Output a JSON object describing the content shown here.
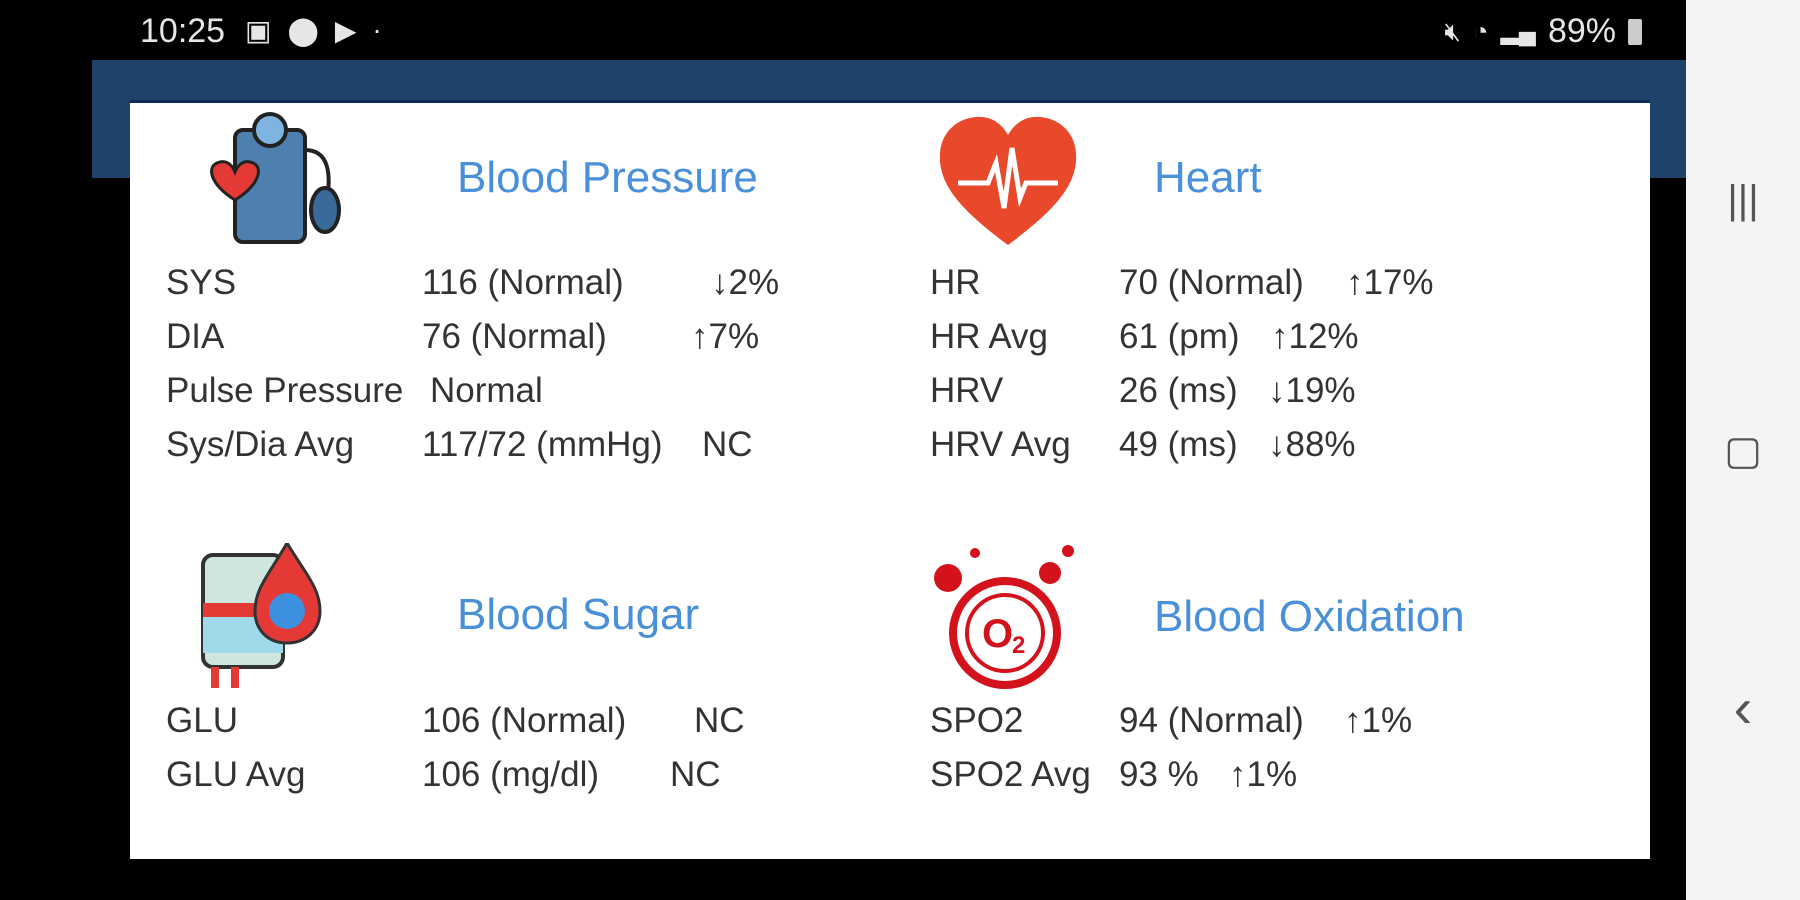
{
  "status_bar": {
    "time": "10:25",
    "battery": "89%",
    "icons": [
      "image-icon",
      "location-icon",
      "play-store-icon",
      "dot-icon",
      "mute-icon",
      "wifi-icon",
      "signal-icon",
      "battery-icon"
    ]
  },
  "nav": {
    "recents": "|||",
    "home": "▢",
    "back": "‹"
  },
  "sections": {
    "bp": {
      "title": "Blood Pressure",
      "rows": [
        {
          "label": "SYS",
          "value": "116 (Normal)",
          "change": "↓2%"
        },
        {
          "label": "DIA",
          "value": "76 (Normal)",
          "change": "↑7%"
        },
        {
          "label": "Pulse Pressure",
          "value": "Normal",
          "change": ""
        },
        {
          "label": "Sys/Dia Avg",
          "value": "117/72 (mmHg)",
          "change": "NC"
        }
      ]
    },
    "heart": {
      "title": "Heart",
      "rows": [
        {
          "label": "HR",
          "value": "70 (Normal)",
          "change": "↑17%"
        },
        {
          "label": "HR Avg",
          "value": "61 (pm)",
          "change": "↑12%"
        },
        {
          "label": "HRV",
          "value": "26 (ms)",
          "change": "↓19%"
        },
        {
          "label": "HRV Avg",
          "value": "49 (ms)",
          "change": "↓88%"
        }
      ]
    },
    "sugar": {
      "title": "Blood Sugar",
      "rows": [
        {
          "label": "GLU",
          "value": "106 (Normal)",
          "change": "NC"
        },
        {
          "label": "GLU Avg",
          "value": "106 (mg/dl)",
          "change": "NC"
        }
      ]
    },
    "oxygen": {
      "title": "Blood Oxidation",
      "rows": [
        {
          "label": "SPO2",
          "value": "94 (Normal)",
          "change": "↑1%"
        },
        {
          "label": "SPO2 Avg",
          "value": "93 %",
          "change": "↑1%"
        }
      ]
    }
  }
}
